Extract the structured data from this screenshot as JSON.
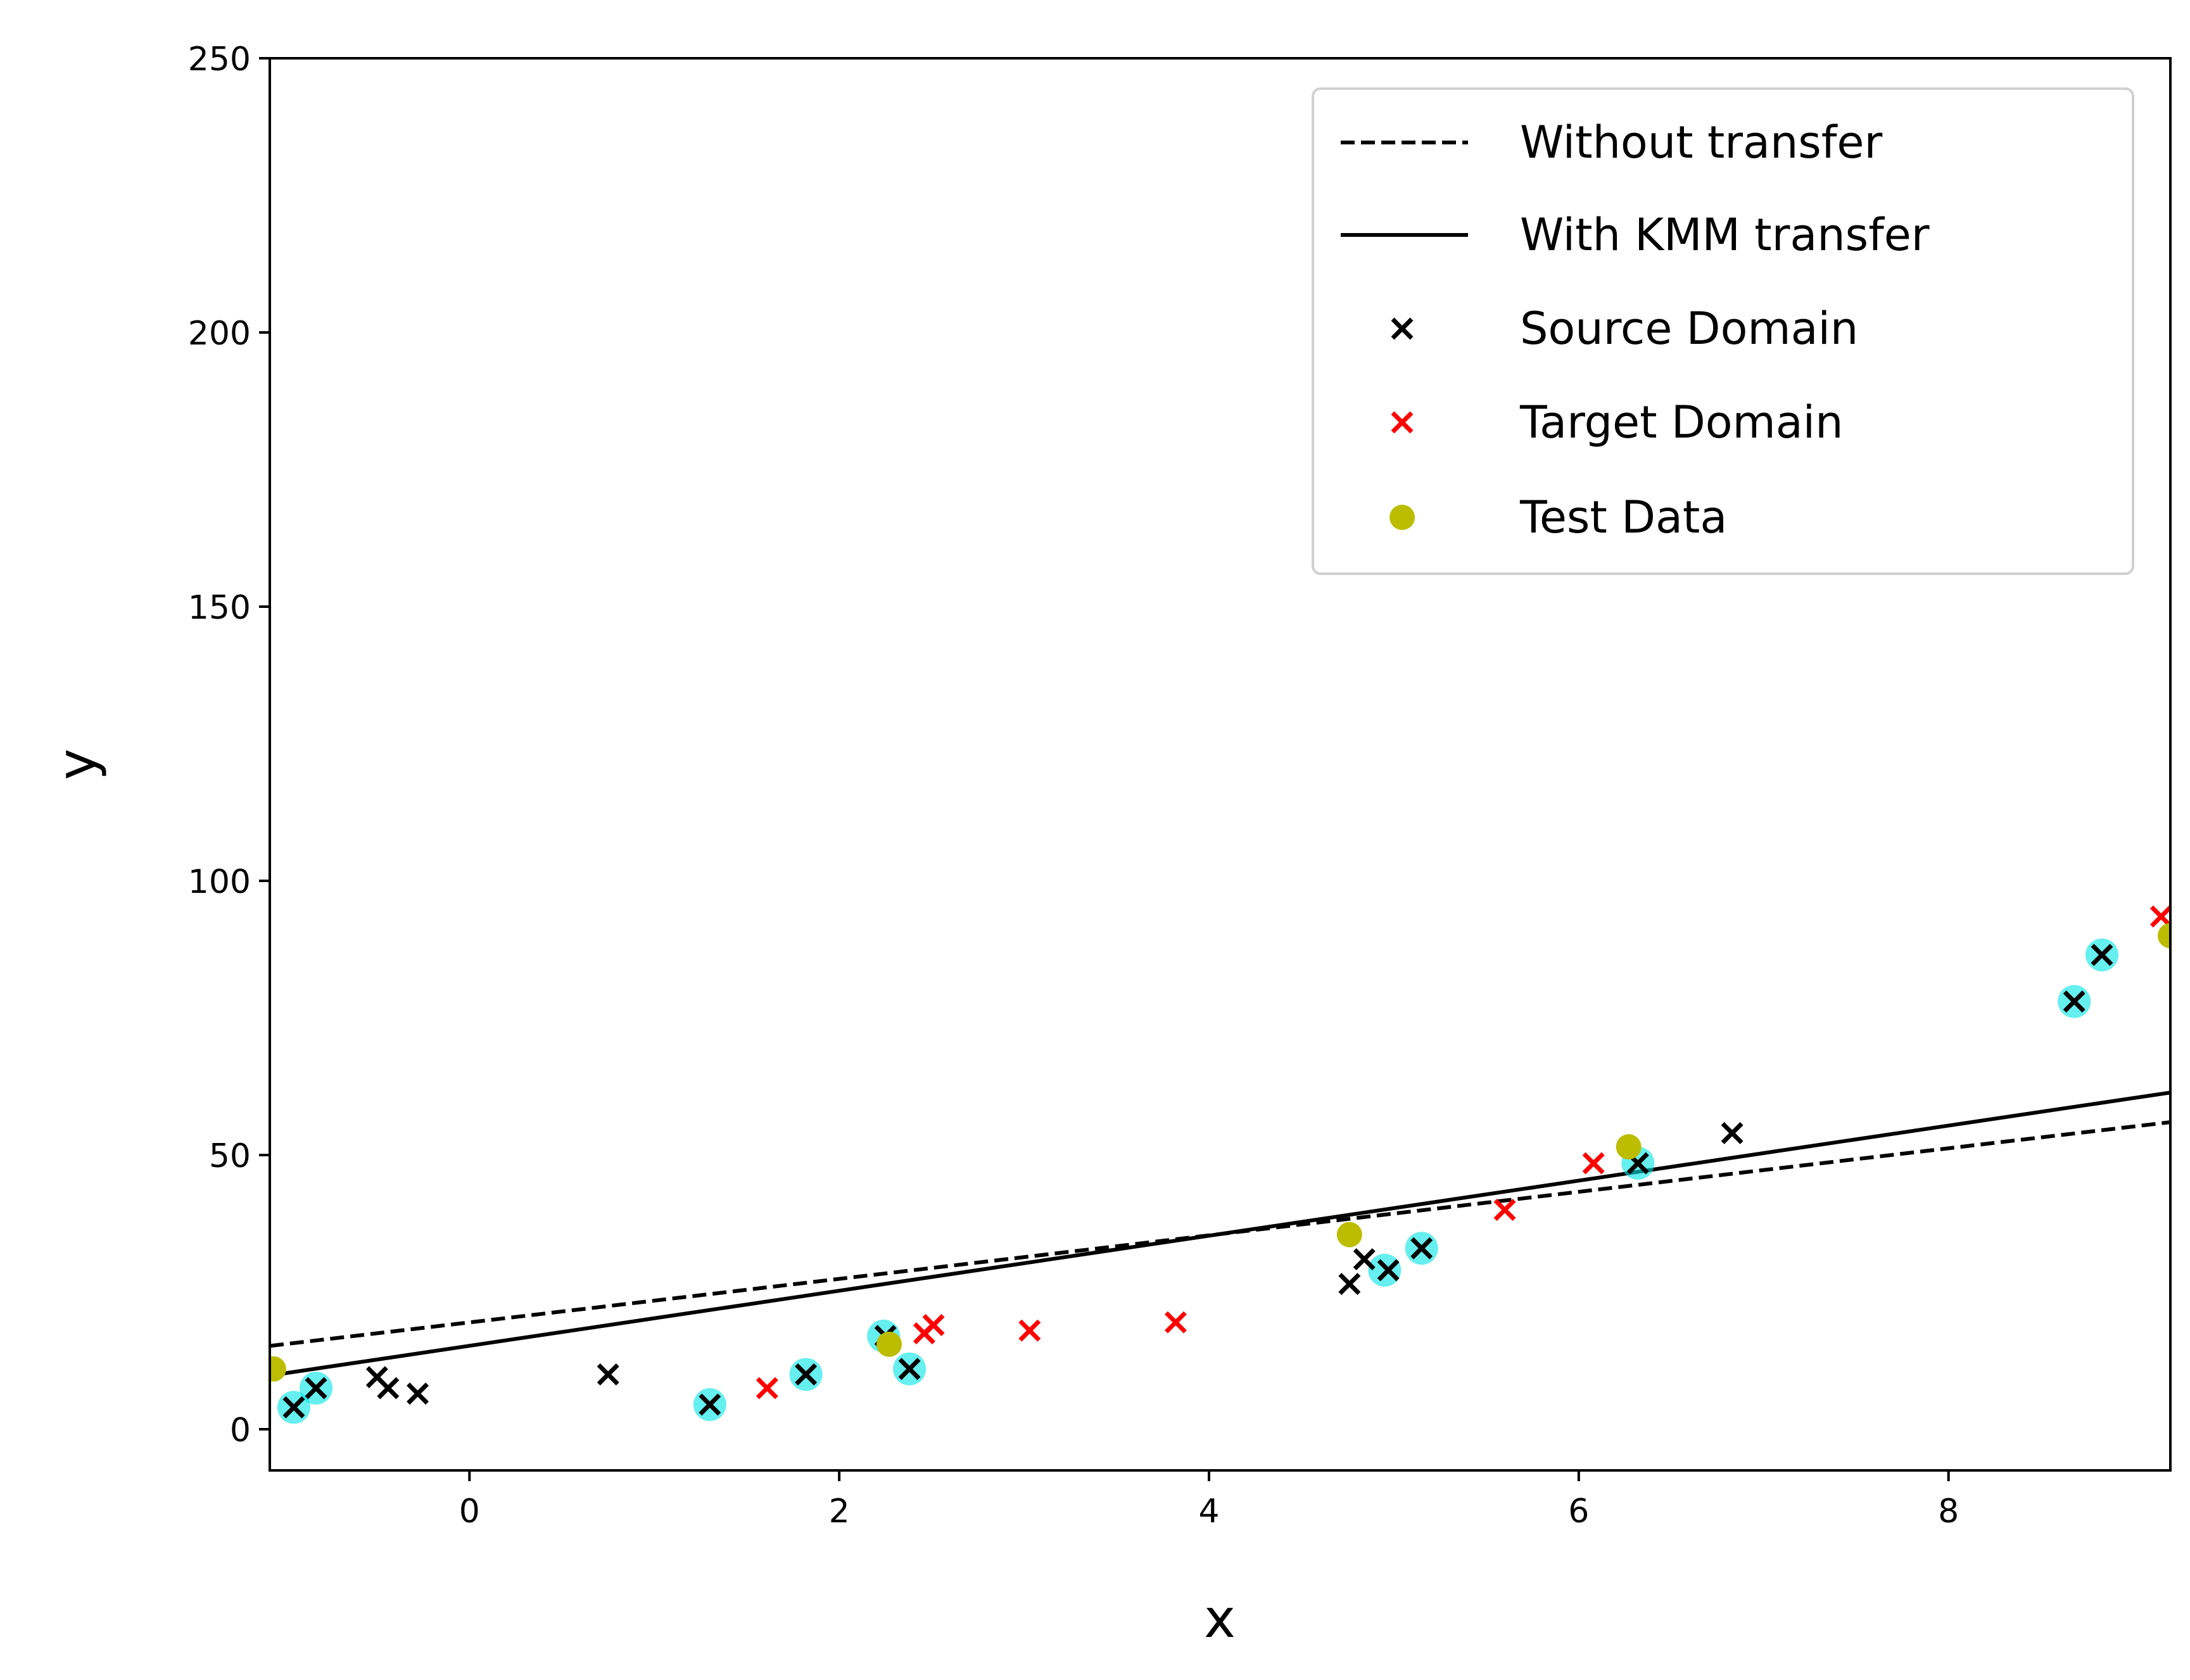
{
  "chart_data": {
    "type": "scatter",
    "title": "",
    "xlabel": "x",
    "ylabel": "y",
    "xlim": [
      -1.08,
      9.2
    ],
    "ylim": [
      -7.5,
      250
    ],
    "xticks": [
      0,
      2,
      4,
      6,
      8
    ],
    "yticks": [
      0,
      50,
      100,
      150,
      200,
      250
    ],
    "grid": false,
    "legend_position": "top-right",
    "lines": [
      {
        "name": "Without transfer",
        "style": "dashed",
        "color": "#000000",
        "x": [
          -1.08,
          9.2
        ],
        "y": [
          15.2,
          56.0
        ]
      },
      {
        "name": "With KMM transfer",
        "style": "solid",
        "color": "#000000",
        "x": [
          -1.08,
          9.2
        ],
        "y": [
          9.8,
          61.4
        ]
      }
    ],
    "highlights": {
      "color": "#00e5e5",
      "x": [
        -0.95,
        -0.83,
        1.3,
        1.82,
        2.24,
        2.38,
        4.95,
        5.15,
        6.32,
        8.68,
        8.83
      ],
      "y": [
        4.0,
        7.5,
        4.5,
        10.0,
        17.0,
        11.0,
        29.0,
        33.0,
        48.5,
        78.0,
        86.5
      ]
    },
    "series": [
      {
        "name": "Source Domain",
        "marker": "x",
        "color": "#000000",
        "x": [
          -0.95,
          -0.83,
          -0.5,
          -0.44,
          -0.28,
          0.75,
          1.3,
          1.82,
          2.25,
          2.38,
          4.76,
          4.84,
          4.97,
          5.15,
          6.32,
          6.83,
          8.68,
          8.83
        ],
        "y": [
          4.0,
          7.5,
          9.5,
          7.5,
          6.5,
          10.0,
          4.5,
          10.0,
          17.0,
          11.0,
          26.5,
          31.0,
          29.0,
          33.0,
          48.5,
          54.0,
          78.0,
          86.5
        ]
      },
      {
        "name": "Target Domain",
        "marker": "x",
        "color": "#ff0000",
        "x": [
          1.61,
          2.46,
          2.51,
          3.03,
          3.82,
          5.6,
          6.08,
          9.15
        ],
        "y": [
          7.5,
          17.5,
          19.0,
          18.0,
          19.5,
          40.0,
          48.5,
          93.5
        ]
      },
      {
        "name": "Test Data",
        "marker": "o",
        "color": "#bcbd00",
        "x": [
          -1.06,
          2.27,
          4.76,
          6.27,
          9.2
        ],
        "y": [
          11.0,
          15.5,
          35.5,
          51.5,
          90.0
        ]
      }
    ]
  }
}
